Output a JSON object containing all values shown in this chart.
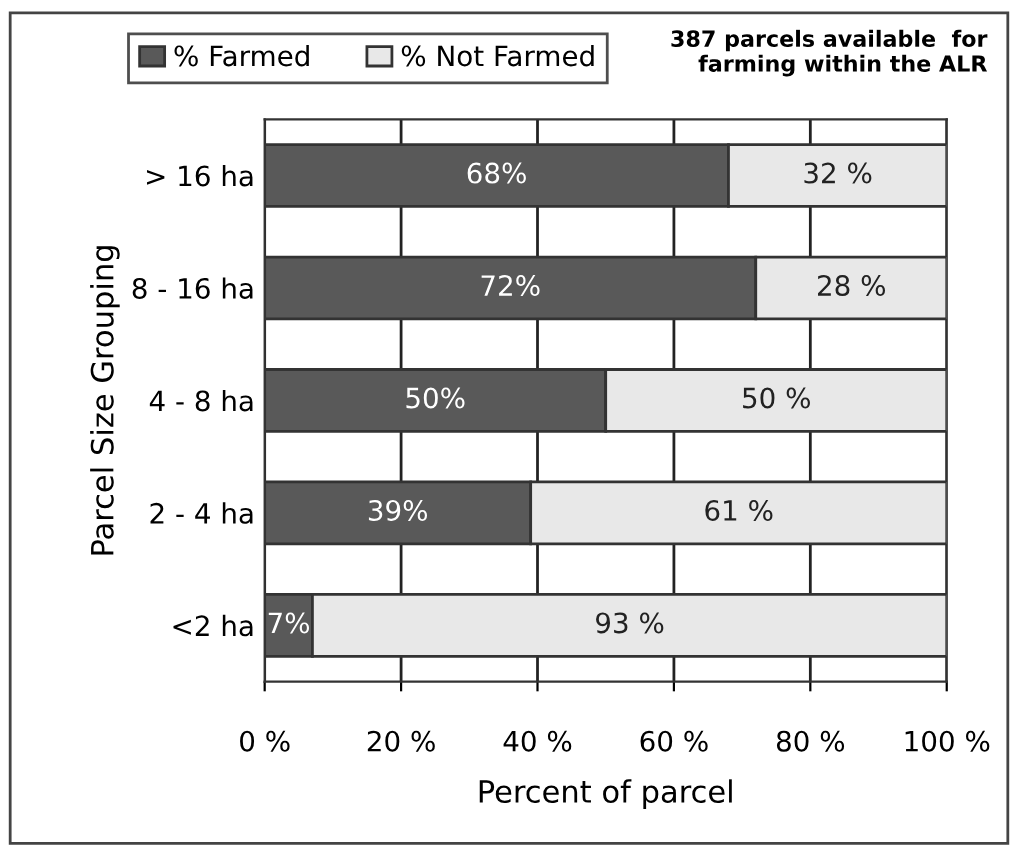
{
  "chart_data": {
    "type": "bar",
    "orientation": "horizontal",
    "stacked": true,
    "categories": [
      "> 16 ha",
      "8 - 16 ha",
      "4 - 8 ha",
      "2 - 4 ha",
      "<2 ha"
    ],
    "series": [
      {
        "name": "% Farmed",
        "color": "#595959",
        "values": [
          68,
          72,
          50,
          39,
          7
        ],
        "value_labels": [
          "68%",
          "72%",
          "50%",
          "39%",
          "7%"
        ]
      },
      {
        "name": "% Not Farmed",
        "color": "#e8e8e8",
        "values": [
          32,
          28,
          50,
          61,
          93
        ],
        "value_labels": [
          "32 %",
          "28 %",
          "50 %",
          "61 %",
          "93 %"
        ]
      }
    ],
    "xlim": [
      0,
      100
    ],
    "xticks": [
      {
        "value": 0,
        "label": "0 %"
      },
      {
        "value": 20,
        "label": "20 %"
      },
      {
        "value": 40,
        "label": "40 %"
      },
      {
        "value": 60,
        "label": "60 %"
      },
      {
        "value": 80,
        "label": "80 %"
      },
      {
        "value": 100,
        "label": "100 %"
      }
    ],
    "xlabel": "Percent of parcel",
    "ylabel": "Parcel Size Grouping",
    "annotations": [
      "387 parcels available  for\nfarming within the ALR"
    ],
    "grid": "x",
    "legend": "top left"
  }
}
